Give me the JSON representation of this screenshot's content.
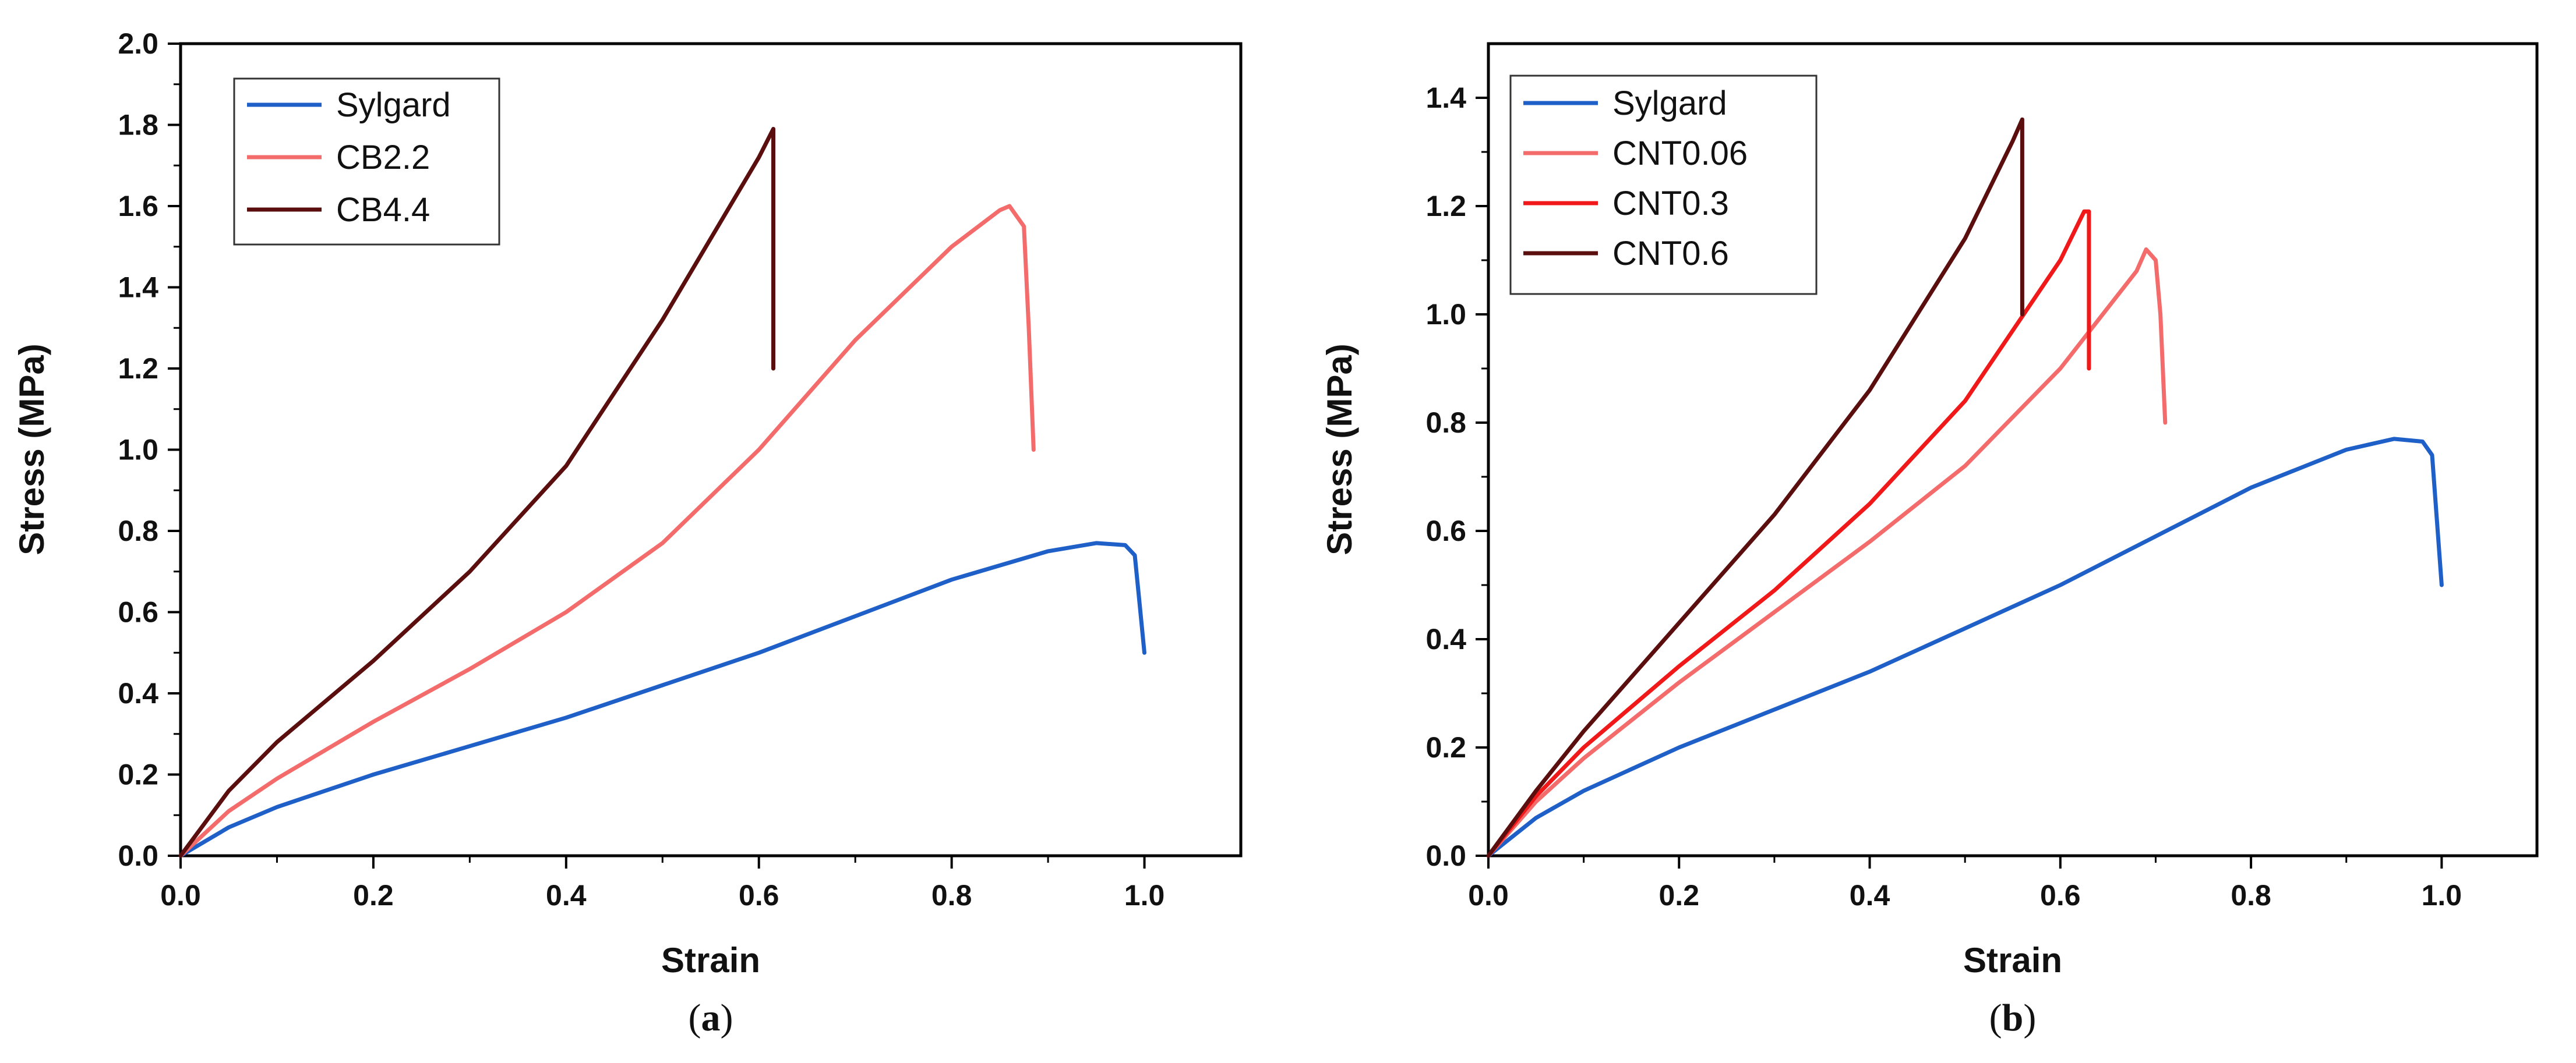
{
  "chart_data": [
    {
      "type": "line",
      "caption_letter": "a",
      "xlabel": "Strain",
      "ylabel": "Stress (MPa)",
      "xlim": [
        0,
        1.1
      ],
      "ylim": [
        0,
        2.0
      ],
      "xticks": [
        0.0,
        0.2,
        0.4,
        0.6,
        0.8,
        1.0
      ],
      "xtick_labels": [
        "0.0",
        "0.2",
        "0.4",
        "0.6",
        "0.8",
        "1.0"
      ],
      "yticks": [
        0.0,
        0.2,
        0.4,
        0.6,
        0.8,
        1.0,
        1.2,
        1.4,
        1.6,
        1.8,
        2.0
      ],
      "ytick_labels": [
        "0.0",
        "0.2",
        "0.4",
        "0.6",
        "0.8",
        "1.0",
        "1.2",
        "1.4",
        "1.6",
        "1.8",
        "2.0"
      ],
      "legend_position": "top-left",
      "series": [
        {
          "name": "Sylgard",
          "color": "#1f5fc8",
          "x": [
            0,
            0.05,
            0.1,
            0.2,
            0.3,
            0.4,
            0.5,
            0.6,
            0.7,
            0.8,
            0.9,
            0.95,
            0.98,
            0.99,
            0.995,
            1.0
          ],
          "y": [
            0,
            0.07,
            0.12,
            0.2,
            0.27,
            0.34,
            0.42,
            0.5,
            0.59,
            0.68,
            0.75,
            0.77,
            0.765,
            0.74,
            0.62,
            0.5
          ]
        },
        {
          "name": "CB2.2",
          "color": "#f46b6b",
          "x": [
            0,
            0.05,
            0.1,
            0.2,
            0.3,
            0.4,
            0.5,
            0.6,
            0.7,
            0.8,
            0.85,
            0.86,
            0.875,
            0.88,
            0.885
          ],
          "y": [
            0,
            0.11,
            0.19,
            0.33,
            0.46,
            0.6,
            0.77,
            1.0,
            1.27,
            1.5,
            1.59,
            1.6,
            1.55,
            1.3,
            1.0
          ]
        },
        {
          "name": "CB4.4",
          "color": "#5a0e0e",
          "x": [
            0,
            0.05,
            0.1,
            0.2,
            0.3,
            0.4,
            0.5,
            0.55,
            0.6,
            0.615,
            0.615
          ],
          "y": [
            0,
            0.16,
            0.28,
            0.48,
            0.7,
            0.96,
            1.32,
            1.52,
            1.72,
            1.79,
            1.2
          ]
        }
      ]
    },
    {
      "type": "line",
      "caption_letter": "b",
      "xlabel": "Strain",
      "ylabel": "Stress (MPa)",
      "xlim": [
        0,
        1.1
      ],
      "ylim": [
        0,
        1.5
      ],
      "xticks": [
        0.0,
        0.2,
        0.4,
        0.6,
        0.8,
        1.0
      ],
      "xtick_labels": [
        "0.0",
        "0.2",
        "0.4",
        "0.6",
        "0.8",
        "1.0"
      ],
      "yticks": [
        0.0,
        0.2,
        0.4,
        0.6,
        0.8,
        1.0,
        1.2,
        1.4
      ],
      "ytick_labels": [
        "0.0",
        "0.2",
        "0.4",
        "0.6",
        "0.8",
        "1.0",
        "1.2",
        "1.4"
      ],
      "legend_position": "top-left",
      "series": [
        {
          "name": "Sylgard",
          "color": "#1f5fc8",
          "x": [
            0,
            0.05,
            0.1,
            0.2,
            0.3,
            0.4,
            0.5,
            0.6,
            0.7,
            0.8,
            0.9,
            0.95,
            0.98,
            0.99,
            0.995,
            1.0
          ],
          "y": [
            0,
            0.07,
            0.12,
            0.2,
            0.27,
            0.34,
            0.42,
            0.5,
            0.59,
            0.68,
            0.75,
            0.77,
            0.765,
            0.74,
            0.62,
            0.5
          ]
        },
        {
          "name": "CNT0.06",
          "color": "#f46b6b",
          "x": [
            0,
            0.05,
            0.1,
            0.2,
            0.3,
            0.4,
            0.5,
            0.6,
            0.68,
            0.69,
            0.7,
            0.705,
            0.71
          ],
          "y": [
            0,
            0.1,
            0.18,
            0.32,
            0.45,
            0.58,
            0.72,
            0.9,
            1.08,
            1.12,
            1.1,
            1.0,
            0.8
          ]
        },
        {
          "name": "CNT0.3",
          "color": "#f01818",
          "x": [
            0,
            0.05,
            0.1,
            0.2,
            0.3,
            0.4,
            0.5,
            0.6,
            0.625,
            0.63,
            0.63
          ],
          "y": [
            0,
            0.11,
            0.2,
            0.35,
            0.49,
            0.65,
            0.84,
            1.1,
            1.19,
            1.19,
            0.9
          ]
        },
        {
          "name": "CNT0.6",
          "color": "#5a0e0e",
          "x": [
            0,
            0.05,
            0.1,
            0.2,
            0.3,
            0.4,
            0.5,
            0.55,
            0.56,
            0.56
          ],
          "y": [
            0,
            0.12,
            0.23,
            0.43,
            0.63,
            0.86,
            1.14,
            1.32,
            1.36,
            1.0
          ]
        }
      ]
    }
  ]
}
